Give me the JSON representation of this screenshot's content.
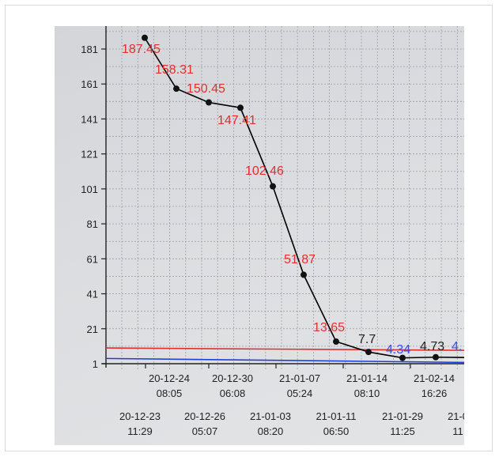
{
  "chart_data": {
    "type": "line",
    "title": "",
    "xlabel": "",
    "ylabel": "",
    "y_ticks": [
      1,
      21,
      41,
      61,
      81,
      101,
      121,
      141,
      161,
      181
    ],
    "ylim": [
      -5,
      194
    ],
    "grid": true,
    "x_ticks_upper": [
      {
        "date": "20-12-24",
        "time": "08:05"
      },
      {
        "date": "20-12-30",
        "time": "06:08"
      },
      {
        "date": "21-01-07",
        "time": "05:24"
      },
      {
        "date": "21-01-14",
        "time": "08:10"
      },
      {
        "date": "21-02-14",
        "time": "16:26"
      }
    ],
    "x_ticks_lower": [
      {
        "date": "20-12-23",
        "time": "11:29"
      },
      {
        "date": "20-12-26",
        "time": "05:07"
      },
      {
        "date": "21-01-03",
        "time": "08:20"
      },
      {
        "date": "21-01-11",
        "time": "06:50"
      },
      {
        "date": "21-01-29",
        "time": "11:25"
      },
      {
        "date": "21-0",
        "time": "11"
      }
    ],
    "series": [
      {
        "color": "#000000",
        "values": [
          {
            "y": 187.45,
            "label": "187.45",
            "label_color": "#e03030"
          },
          {
            "y": 158.31,
            "label": "158.31",
            "label_color": "#e03030"
          },
          {
            "y": 150.45,
            "label": "150.45",
            "label_color": "#e03030"
          },
          {
            "y": 147.41,
            "label": "147.41",
            "label_color": "#e03030"
          },
          {
            "y": 102.46,
            "label": "102.46",
            "label_color": "#e03030"
          },
          {
            "y": 51.87,
            "label": "51.87",
            "label_color": "#e03030"
          },
          {
            "y": 13.65,
            "label": "13.65",
            "label_color": "#e03030"
          },
          {
            "y": 7.7,
            "label": "7.7",
            "label_color": "#222222"
          },
          {
            "y": 4.34,
            "label": "4.34",
            "label_color": "#3a4fe0"
          },
          {
            "y": 4.73,
            "label": "4.73",
            "label_color": "#222222"
          },
          {
            "y": 4.5,
            "label": "4.",
            "label_color": "#3a4fe0"
          }
        ]
      }
    ],
    "reference_lines": [
      {
        "y": 10,
        "color": "#e03030"
      },
      {
        "y": 4,
        "color": "#1f3fd8"
      }
    ]
  }
}
